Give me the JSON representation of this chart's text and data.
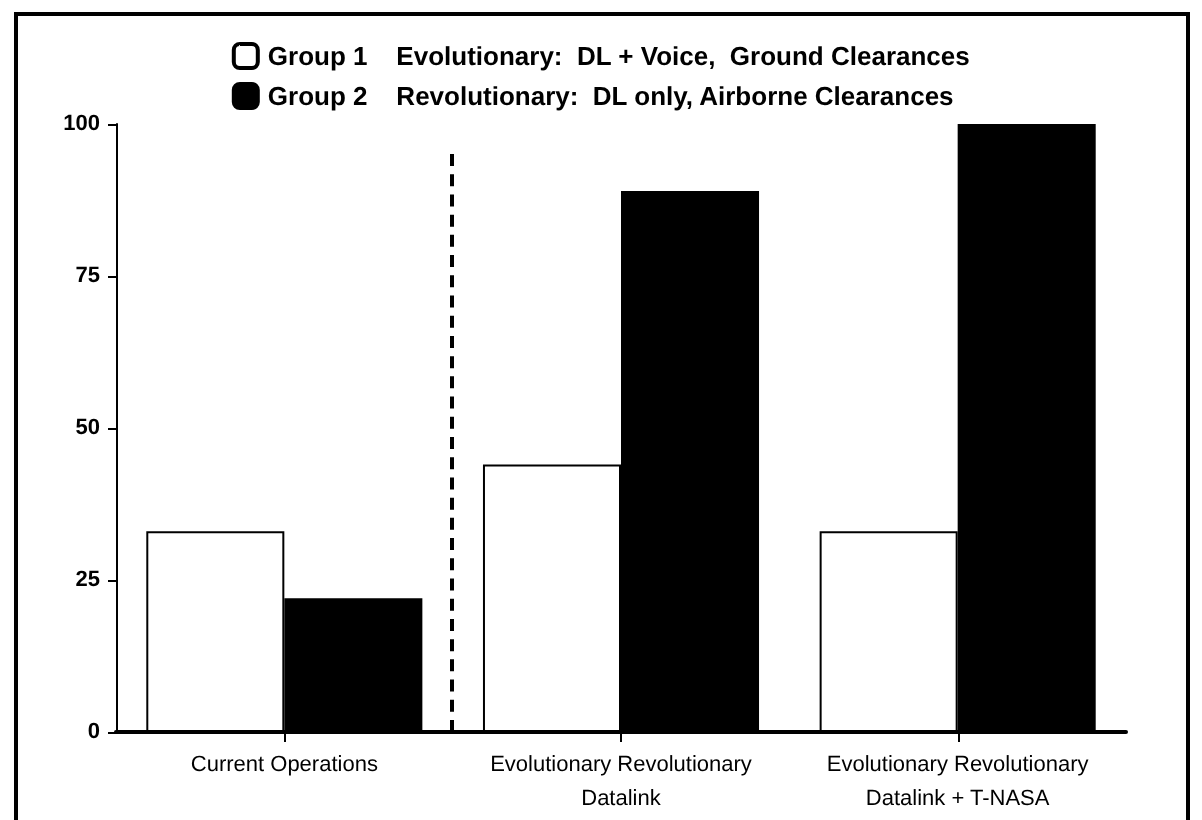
{
  "chart_data": {
    "type": "bar",
    "categories": [
      "Current Operations",
      "Evolutionary Revolutionary\nDatalink",
      "Evolutionary Revolutionary\nDatalink + T-NASA"
    ],
    "series": [
      {
        "name": "Group 1    Evolutionary:  DL + Voice,  Ground Clearances",
        "color": "#ffffff",
        "values": [
          33,
          44,
          33
        ]
      },
      {
        "name": "Group 2    Revolutionary:  DL only, Airborne Clearances",
        "color": "#000000",
        "values": [
          22,
          89,
          100
        ]
      }
    ],
    "ylim": [
      0,
      100
    ],
    "yticks": [
      0,
      25,
      50,
      75,
      100
    ],
    "grid": false,
    "legend": "top"
  }
}
